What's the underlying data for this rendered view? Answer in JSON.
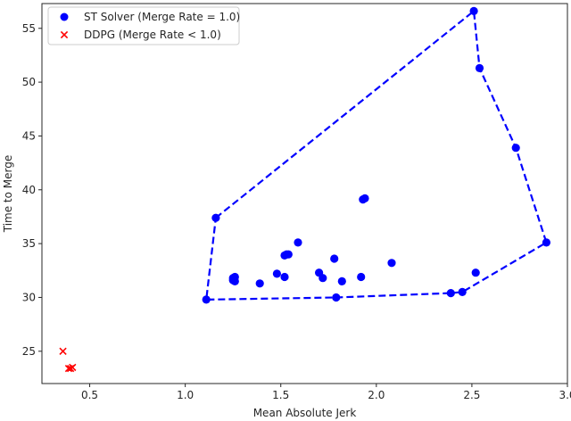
{
  "chart_data": {
    "type": "scatter",
    "xlabel": "Mean Absolute Jerk",
    "ylabel": "Time to Merge",
    "xlim": [
      0.25,
      3.0
    ],
    "ylim": [
      22.0,
      57.3
    ],
    "xticks": [
      0.5,
      1.0,
      1.5,
      2.0,
      2.5,
      3.0
    ],
    "xtick_labels": [
      "0.5",
      "1.0",
      "1.5",
      "2.0",
      "2.5",
      "3.0"
    ],
    "yticks": [
      25,
      30,
      35,
      40,
      45,
      50,
      55
    ],
    "ytick_labels": [
      "25",
      "30",
      "35",
      "40",
      "45",
      "50",
      "55"
    ],
    "grid": false,
    "legend": "top-left",
    "series": [
      {
        "name": "ST Solver (Merge Rate = 1.0)",
        "marker": "circle",
        "color": "#0000ff",
        "points": [
          [
            2.51,
            56.6
          ],
          [
            2.54,
            51.3
          ],
          [
            2.73,
            43.9
          ],
          [
            2.89,
            35.1
          ],
          [
            1.16,
            37.4
          ],
          [
            1.11,
            29.8
          ],
          [
            1.79,
            30.0
          ],
          [
            2.45,
            30.5
          ],
          [
            2.39,
            30.4
          ],
          [
            2.52,
            32.3
          ],
          [
            1.93,
            39.1
          ],
          [
            1.94,
            39.2
          ],
          [
            1.59,
            35.1
          ],
          [
            1.53,
            34.0
          ],
          [
            1.52,
            33.9
          ],
          [
            1.54,
            34.0
          ],
          [
            1.78,
            33.6
          ],
          [
            2.08,
            33.2
          ],
          [
            1.48,
            32.2
          ],
          [
            1.7,
            32.3
          ],
          [
            1.72,
            31.8
          ],
          [
            1.52,
            31.9
          ],
          [
            1.25,
            31.8
          ],
          [
            1.26,
            31.9
          ],
          [
            1.25,
            31.6
          ],
          [
            1.26,
            31.5
          ],
          [
            1.39,
            31.3
          ],
          [
            1.82,
            31.5
          ],
          [
            1.92,
            31.9
          ]
        ]
      },
      {
        "name": "DDPG (Merge Rate < 1.0)",
        "marker": "x",
        "color": "#ff0000",
        "points": [
          [
            0.36,
            25.0
          ],
          [
            0.39,
            23.4
          ],
          [
            0.41,
            23.5
          ],
          [
            0.4,
            23.4
          ]
        ]
      }
    ],
    "hull": {
      "color": "#0000ff",
      "style": "dashed",
      "vertices": [
        [
          1.16,
          37.4
        ],
        [
          2.51,
          56.6
        ],
        [
          2.54,
          51.3
        ],
        [
          2.73,
          43.9
        ],
        [
          2.89,
          35.1
        ],
        [
          2.45,
          30.5
        ],
        [
          2.39,
          30.4
        ],
        [
          1.79,
          30.0
        ],
        [
          1.11,
          29.8
        ]
      ]
    }
  }
}
